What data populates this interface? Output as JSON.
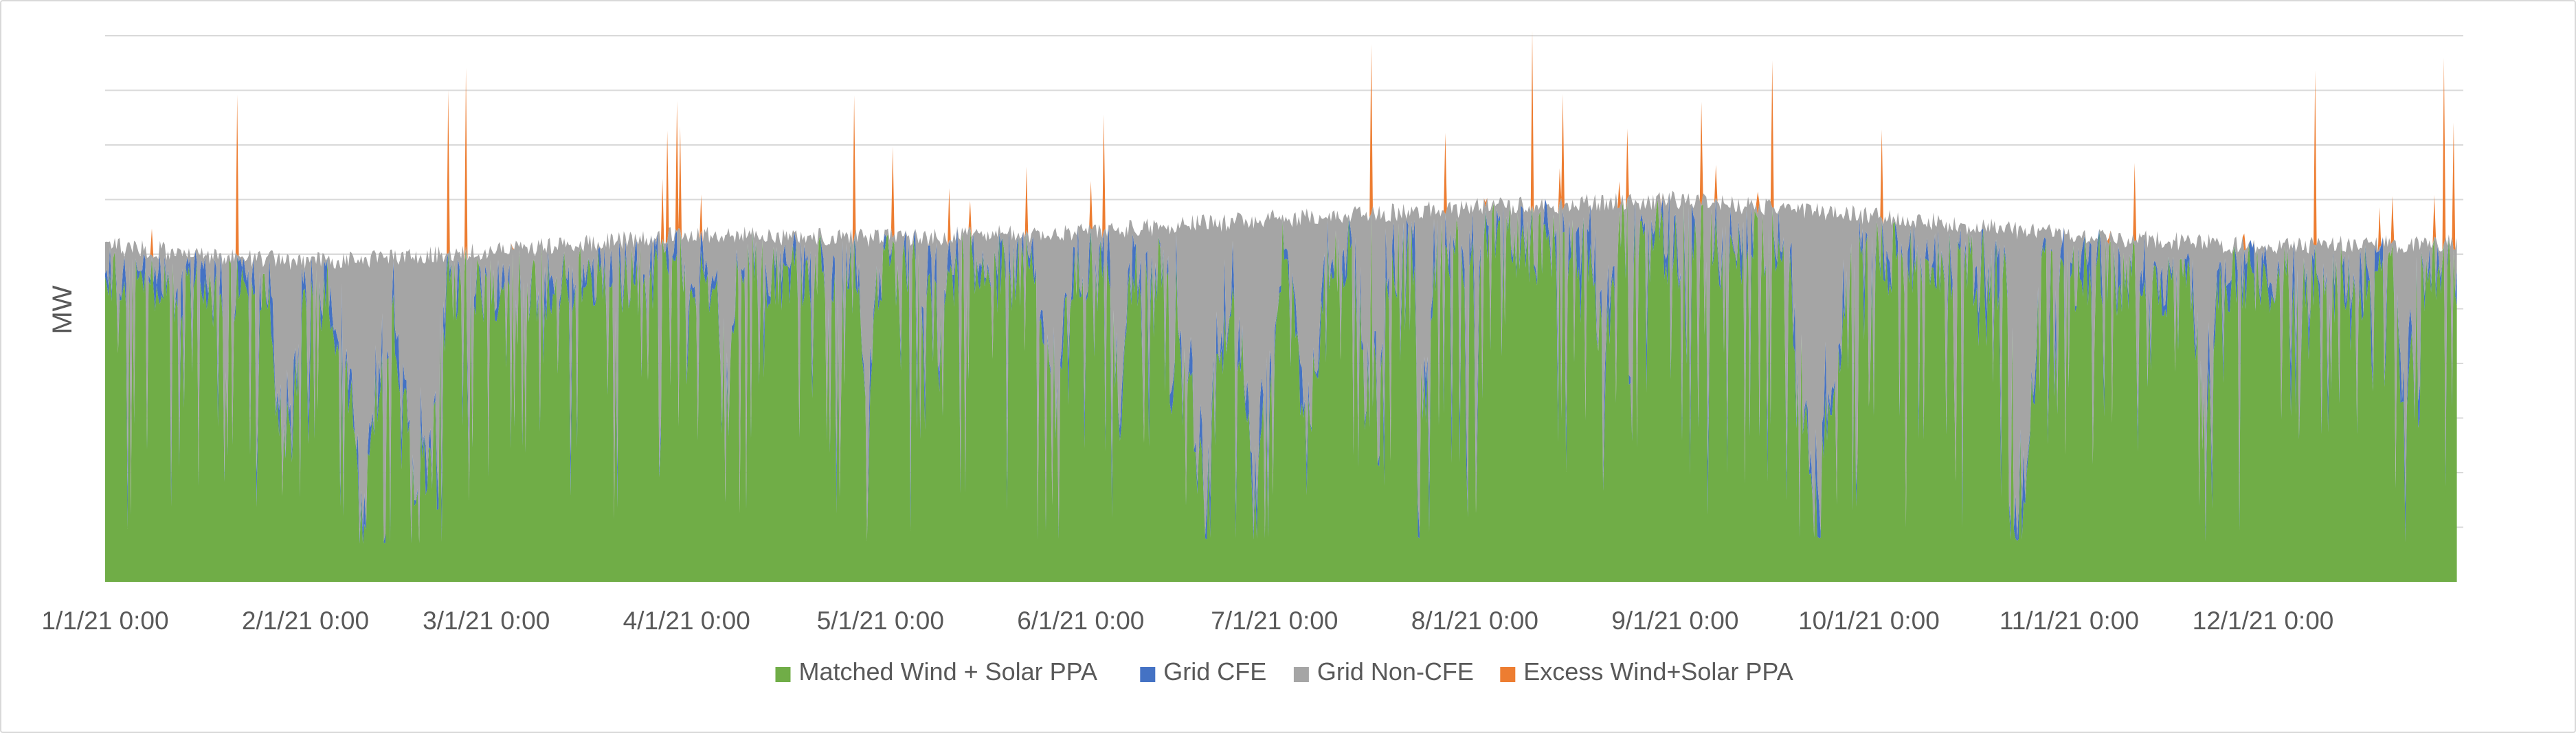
{
  "chart_data": {
    "type": "area",
    "stacked": true,
    "title": "",
    "xlabel": "",
    "ylabel": "MW",
    "y_tick_labels_shown": false,
    "grid": true,
    "legend_position": "bottom",
    "x_axis": {
      "start": "1/1/21 0:00",
      "end": "12/31/21 23:00",
      "interval": "hourly",
      "tick_labels": [
        "1/1/21 0:00",
        "2/1/21 0:00",
        "3/1/21 0:00",
        "4/1/21 0:00",
        "5/1/21 0:00",
        "6/1/21 0:00",
        "7/1/21 0:00",
        "8/1/21 0:00",
        "9/1/21 0:00",
        "10/1/21 0:00",
        "11/1/21 0:00",
        "12/1/21 0:00"
      ],
      "tick_days": [
        0,
        31,
        59,
        90,
        120,
        151,
        181,
        212,
        243,
        273,
        304,
        334
      ],
      "total_days": 365
    },
    "y_axis": {
      "ylim": [
        0,
        100
      ],
      "gridlines": [
        10,
        20,
        30,
        40,
        50,
        60,
        70,
        80,
        90,
        100
      ],
      "units": "relative (no numeric tick labels shown)"
    },
    "load_profile_approx": {
      "description": "Total load (top of grey area) is roughly flat around 61-62 with summer peak ~69",
      "x_days": [
        0,
        31,
        59,
        90,
        120,
        151,
        181,
        212,
        243,
        273,
        304,
        334,
        364
      ],
      "values": [
        61.5,
        58.5,
        60.5,
        63.5,
        63,
        64,
        66.5,
        68.5,
        70,
        67,
        63.5,
        61.5,
        62
      ]
    },
    "series": [
      {
        "name": "Matched Wind + Solar PPA",
        "color": "#70AD47",
        "description": "Hourly wind+solar output matched to load; typically 40-60, dipping to ~8-25 during low-renewable events (late Feb, late June/early July, late Sep, late Oct)",
        "typical_range": [
          8,
          68
        ]
      },
      {
        "name": "Grid CFE",
        "color": "#4472C4",
        "description": "Carbon-free grid energy filling part of the gap between matched PPA and load",
        "typical_range": [
          0,
          12
        ]
      },
      {
        "name": "Grid Non-CFE",
        "color": "#A5A5A5",
        "description": "Remaining grid energy up to total load",
        "typical_range": [
          0,
          45
        ]
      },
      {
        "name": "Excess Wind+Solar PPA",
        "color": "#ED7D31",
        "description": "PPA generation above load; spikes reach up to ~96 at peak",
        "typical_range": [
          0,
          30
        ],
        "peak_value": 96
      }
    ]
  },
  "legend": {
    "items": [
      {
        "label": "Matched Wind + Solar PPA",
        "color": "#70AD47"
      },
      {
        "label": "Grid CFE",
        "color": "#4472C4"
      },
      {
        "label": "Grid Non-CFE",
        "color": "#A5A5A5"
      },
      {
        "label": "Excess Wind+Solar PPA",
        "color": "#ED7D31"
      }
    ]
  },
  "colors": {
    "grid": "#d9d9d9",
    "text": "#595959",
    "border": "#d9d9d9"
  }
}
